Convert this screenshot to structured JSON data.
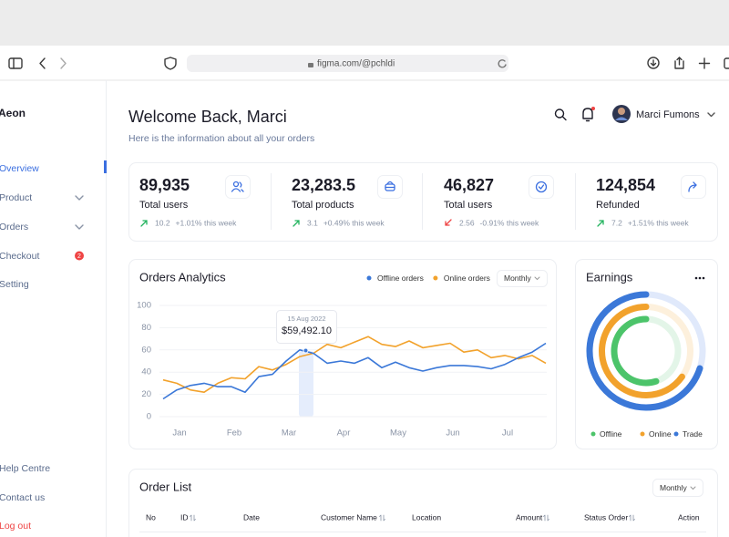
{
  "browser": {
    "url": "figma.com/@pchldi"
  },
  "sidebar": {
    "brand": "Aeon",
    "menu": [
      {
        "label": "Overview"
      },
      {
        "label": "Product"
      },
      {
        "label": "Orders"
      },
      {
        "label": "Checkout",
        "badge": "2"
      },
      {
        "label": "Setting"
      }
    ],
    "footer": [
      "Help Centre",
      "Contact us",
      "Log out"
    ]
  },
  "header": {
    "title": "Welcome Back, Marci",
    "subtitle": "Here is the information about all your orders",
    "user": "Marci Fumons"
  },
  "stats": [
    {
      "value": "89,935",
      "label": "Total users",
      "change": "10.2",
      "percent": "+1.01% this week",
      "trend": "up"
    },
    {
      "value": "23,283.5",
      "label": "Total products",
      "change": "3.1",
      "percent": "+0.49% this week",
      "trend": "up"
    },
    {
      "value": "46,827",
      "label": "Total users",
      "change": "2.56",
      "percent": "-0.91% this week",
      "trend": "down"
    },
    {
      "value": "124,854",
      "label": "Refunded",
      "change": "7.2",
      "percent": "+1.51% this week",
      "trend": "up"
    }
  ],
  "chart_data": [
    {
      "type": "line",
      "title": "Orders Analytics",
      "filter": "Monthly",
      "x": [
        -0.3,
        -0.05,
        0.2,
        0.45,
        0.7,
        0.95,
        1.2,
        1.45,
        1.7,
        1.95,
        2.2,
        2.45,
        2.7,
        2.95,
        3.2,
        3.45,
        3.7,
        3.95,
        4.2,
        4.45,
        4.7,
        4.95,
        5.2,
        5.45,
        5.7,
        5.95,
        6.2,
        6.45,
        6.7
      ],
      "xlim": [
        -0.3,
        6.7
      ],
      "xticks": [
        {
          "value": 0,
          "label": "Jan"
        },
        {
          "value": 1,
          "label": "Feb"
        },
        {
          "value": 2,
          "label": "Mar"
        },
        {
          "value": 3,
          "label": "Apr"
        },
        {
          "value": 4,
          "label": "May"
        },
        {
          "value": 5,
          "label": "Jun"
        },
        {
          "value": 6,
          "label": "Jul"
        }
      ],
      "ylim": [
        0,
        100
      ],
      "yticks": [
        0,
        20,
        40,
        60,
        80,
        100
      ],
      "grid": true,
      "series": [
        {
          "name": "Offline orders",
          "color": "#3b78d8",
          "values": [
            16,
            24,
            28,
            30,
            27,
            27,
            22,
            36,
            38,
            50,
            60,
            57,
            48,
            50,
            48,
            53,
            44,
            49,
            44,
            41,
            44,
            46,
            46,
            45,
            43,
            47,
            53,
            58,
            66
          ]
        },
        {
          "name": "Online orders",
          "color": "#f2a22c",
          "values": [
            33,
            30,
            24,
            22,
            30,
            35,
            34,
            45,
            42,
            47,
            54,
            57,
            65,
            62,
            67,
            72,
            65,
            63,
            68,
            62,
            64,
            66,
            58,
            60,
            53,
            55,
            52,
            55,
            48
          ]
        }
      ],
      "tooltip": {
        "date": "15 Aug 2022",
        "value": "$59,492.10"
      }
    },
    {
      "type": "donut",
      "title": "Earnings",
      "categories": [
        "Offline",
        "Online",
        "Trade"
      ],
      "colors": [
        "#4cc46a",
        "#f2a22c",
        "#3b78d8"
      ],
      "values": [
        55,
        65,
        70
      ]
    }
  ],
  "order_list": {
    "title": "Order List",
    "filter": "Monthly",
    "columns": [
      "No",
      "ID",
      "Date",
      "Customer Name",
      "Location",
      "Amount",
      "Status Order",
      "Action"
    ]
  }
}
